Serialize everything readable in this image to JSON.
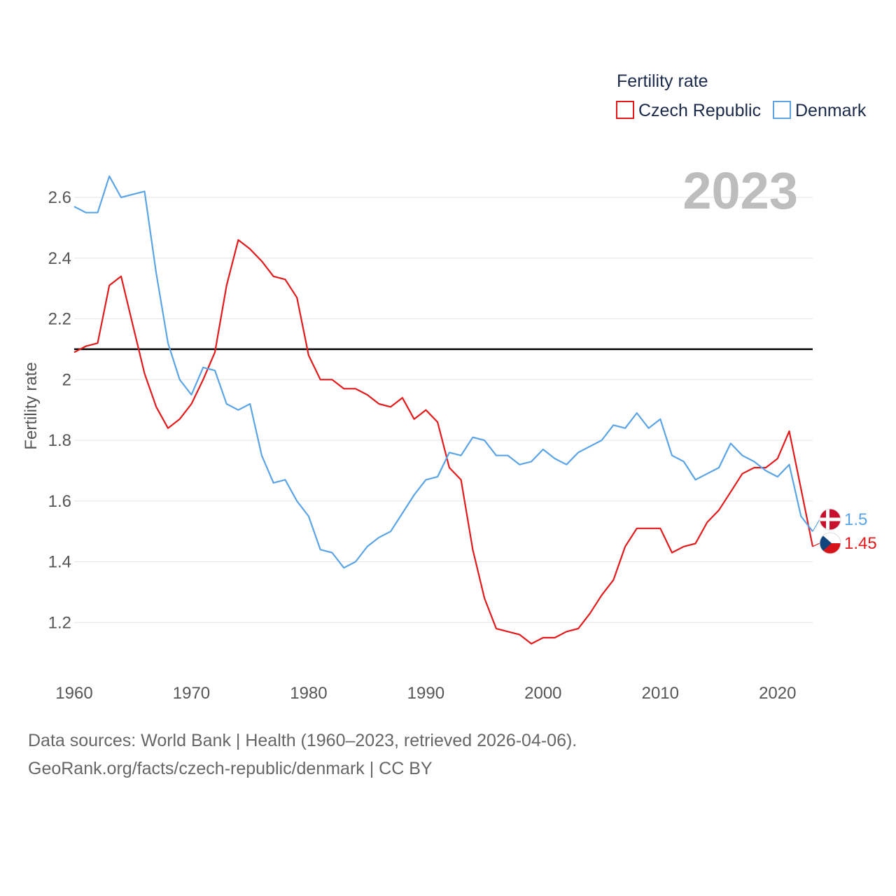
{
  "chart_data": {
    "type": "line",
    "title": "Fertility rate",
    "xlabel": "",
    "ylabel": "Fertility rate",
    "current_year": "2023",
    "xlim": [
      1960,
      2023
    ],
    "ylim": [
      1.06,
      2.72
    ],
    "x_ticks": [
      1960,
      1970,
      1980,
      1990,
      2000,
      2010,
      2020
    ],
    "y_ticks": [
      {
        "value": 1.2,
        "label": "1.2"
      },
      {
        "value": 1.4,
        "label": "1.4"
      },
      {
        "value": 1.6,
        "label": "1.6"
      },
      {
        "value": 1.8,
        "label": "1.8"
      },
      {
        "value": 2.0,
        "label": "2"
      },
      {
        "value": 2.2,
        "label": "2.2"
      },
      {
        "value": 2.4,
        "label": "2.4"
      },
      {
        "value": 2.6,
        "label": "2.6"
      }
    ],
    "reference_line": {
      "value": 2.1,
      "color": "#000000"
    },
    "legend": {
      "title": "Fertility rate",
      "position": "top-right"
    },
    "series": [
      {
        "name": "Czech Republic",
        "color": "#e31a1c",
        "end_label": "1.45",
        "flag_icon": "czech-flag-icon",
        "x": [
          1960,
          1961,
          1962,
          1963,
          1964,
          1965,
          1966,
          1967,
          1968,
          1969,
          1970,
          1971,
          1972,
          1973,
          1974,
          1975,
          1976,
          1977,
          1978,
          1979,
          1980,
          1981,
          1982,
          1983,
          1984,
          1985,
          1986,
          1987,
          1988,
          1989,
          1990,
          1991,
          1992,
          1993,
          1994,
          1995,
          1996,
          1997,
          1998,
          1999,
          2000,
          2001,
          2002,
          2003,
          2004,
          2005,
          2006,
          2007,
          2008,
          2009,
          2010,
          2011,
          2012,
          2013,
          2014,
          2015,
          2016,
          2017,
          2018,
          2019,
          2020,
          2021,
          2022,
          2023
        ],
        "values": [
          2.09,
          2.11,
          2.12,
          2.31,
          2.34,
          2.18,
          2.02,
          1.91,
          1.84,
          1.87,
          1.92,
          2.0,
          2.09,
          2.31,
          2.46,
          2.43,
          2.39,
          2.34,
          2.33,
          2.27,
          2.08,
          2.0,
          2.0,
          1.97,
          1.97,
          1.95,
          1.92,
          1.91,
          1.94,
          1.87,
          1.9,
          1.86,
          1.71,
          1.67,
          1.44,
          1.28,
          1.18,
          1.17,
          1.16,
          1.13,
          1.15,
          1.15,
          1.17,
          1.18,
          1.23,
          1.29,
          1.34,
          1.45,
          1.51,
          1.51,
          1.51,
          1.43,
          1.45,
          1.46,
          1.53,
          1.57,
          1.63,
          1.69,
          1.71,
          1.71,
          1.74,
          1.83,
          1.64,
          1.45
        ]
      },
      {
        "name": "Denmark",
        "color": "#5ba4e6",
        "end_label": "1.5",
        "flag_icon": "denmark-flag-icon",
        "x": [
          1960,
          1961,
          1962,
          1963,
          1964,
          1965,
          1966,
          1967,
          1968,
          1969,
          1970,
          1971,
          1972,
          1973,
          1974,
          1975,
          1976,
          1977,
          1978,
          1979,
          1980,
          1981,
          1982,
          1983,
          1984,
          1985,
          1986,
          1987,
          1988,
          1989,
          1990,
          1991,
          1992,
          1993,
          1994,
          1995,
          1996,
          1997,
          1998,
          1999,
          2000,
          2001,
          2002,
          2003,
          2004,
          2005,
          2006,
          2007,
          2008,
          2009,
          2010,
          2011,
          2012,
          2013,
          2014,
          2015,
          2016,
          2017,
          2018,
          2019,
          2020,
          2021,
          2022,
          2023
        ],
        "values": [
          2.57,
          2.55,
          2.55,
          2.67,
          2.6,
          2.61,
          2.62,
          2.35,
          2.12,
          2.0,
          1.95,
          2.04,
          2.03,
          1.92,
          1.9,
          1.92,
          1.75,
          1.66,
          1.67,
          1.6,
          1.55,
          1.44,
          1.43,
          1.38,
          1.4,
          1.45,
          1.48,
          1.5,
          1.56,
          1.62,
          1.67,
          1.68,
          1.76,
          1.75,
          1.81,
          1.8,
          1.75,
          1.75,
          1.72,
          1.73,
          1.77,
          1.74,
          1.72,
          1.76,
          1.78,
          1.8,
          1.85,
          1.84,
          1.89,
          1.84,
          1.87,
          1.75,
          1.73,
          1.67,
          1.69,
          1.71,
          1.79,
          1.75,
          1.73,
          1.7,
          1.68,
          1.72,
          1.55,
          1.5
        ]
      }
    ]
  },
  "footer": {
    "line1": "Data sources: World Bank | Health (1960–2023, retrieved 2026-04-06).",
    "line2": "GeoRank.org/facts/czech-republic/denmark | CC BY"
  }
}
